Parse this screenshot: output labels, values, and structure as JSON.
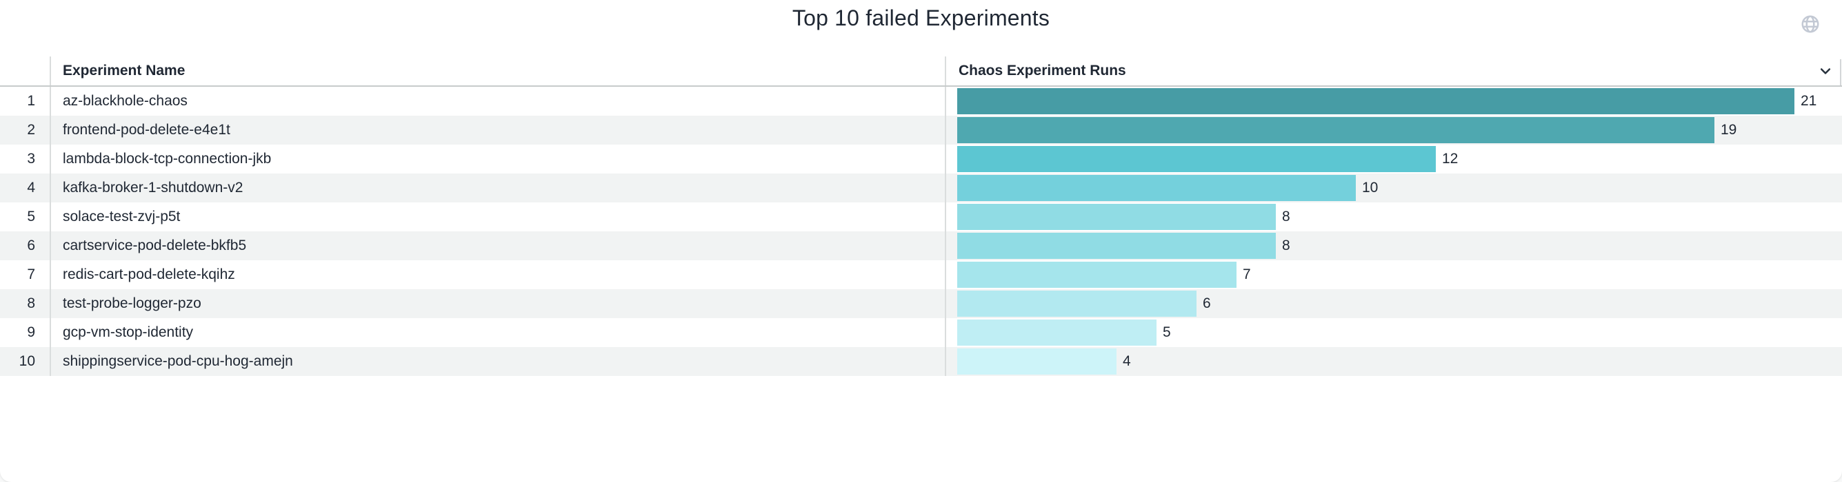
{
  "panel": {
    "title": "Top 10 failed Experiments"
  },
  "table": {
    "columns": {
      "name": "Experiment Name",
      "runs": "Chaos Experiment Runs"
    },
    "rows": [
      {
        "rank": "1",
        "name": "az-blackhole-chaos",
        "runs": 21,
        "color": "#479CA5"
      },
      {
        "rank": "2",
        "name": "frontend-pod-delete-e4e1t",
        "runs": 19,
        "color": "#4FA8B0"
      },
      {
        "rank": "3",
        "name": "lambda-block-tcp-connection-jkb",
        "runs": 12,
        "color": "#5CC6D2"
      },
      {
        "rank": "4",
        "name": "kafka-broker-1-shutdown-v2",
        "runs": 10,
        "color": "#74D0DC"
      },
      {
        "rank": "5",
        "name": "solace-test-zvj-p5t",
        "runs": 8,
        "color": "#90DCE4"
      },
      {
        "rank": "6",
        "name": "cartservice-pod-delete-bkfb5",
        "runs": 8,
        "color": "#90DCE4"
      },
      {
        "rank": "7",
        "name": "redis-cart-pod-delete-kqihz",
        "runs": 7,
        "color": "#A5E5EC"
      },
      {
        "rank": "8",
        "name": "test-probe-logger-pzo",
        "runs": 6,
        "color": "#B2E9F0"
      },
      {
        "rank": "9",
        "name": "gcp-vm-stop-identity",
        "runs": 5,
        "color": "#BFEEF4"
      },
      {
        "rank": "10",
        "name": "shippingservice-pod-cpu-hog-amejn",
        "runs": 4,
        "color": "#CDF4F9"
      }
    ]
  },
  "chart_data": {
    "type": "bar",
    "orientation": "horizontal",
    "title": "Top 10 failed Experiments",
    "categories": [
      "az-blackhole-chaos",
      "frontend-pod-delete-e4e1t",
      "lambda-block-tcp-connection-jkb",
      "kafka-broker-1-shutdown-v2",
      "solace-test-zvj-p5t",
      "cartservice-pod-delete-bkfb5",
      "redis-cart-pod-delete-kqihz",
      "test-probe-logger-pzo",
      "gcp-vm-stop-identity",
      "shippingservice-pod-cpu-hog-amejn"
    ],
    "values": [
      21,
      19,
      12,
      10,
      8,
      8,
      7,
      6,
      5,
      4
    ],
    "data_labels": [
      "21",
      "19",
      "12",
      "10",
      "8",
      "8",
      "7",
      "6",
      "5",
      "4"
    ],
    "xlabel": "Chaos Experiment Runs",
    "ylabel": "Experiment Name",
    "xlim": [
      0,
      21
    ],
    "grid": false,
    "legend": false,
    "bar_colors": [
      "#479CA5",
      "#4FA8B0",
      "#5CC6D2",
      "#74D0DC",
      "#90DCE4",
      "#90DCE4",
      "#A5E5EC",
      "#B2E9F0",
      "#BFEEF4",
      "#CDF4F9"
    ]
  },
  "colors": {
    "text": "#1F2733",
    "row_stripe": "#F1F3F3",
    "header_border": "#C7CBCB",
    "column_divider": "#DADDDD",
    "globe_icon": "#C3C9D4",
    "chevron_icon": "#27313C"
  }
}
